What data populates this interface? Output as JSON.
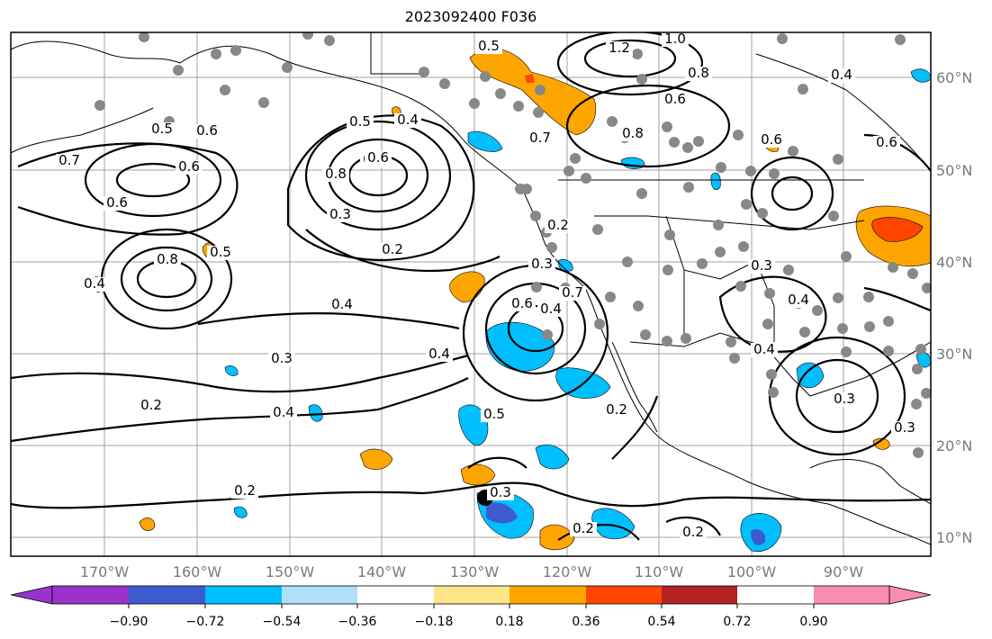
{
  "title": "2023092400 F036",
  "map": {
    "lon_labels": [
      "170°W",
      "160°W",
      "150°W",
      "140°W",
      "130°W",
      "120°W",
      "110°W",
      "100°W",
      "90°W"
    ],
    "lat_labels": [
      "60°N",
      "50°N",
      "40°N",
      "30°N",
      "20°N",
      "10°N"
    ],
    "station_marker_color": "#888888",
    "storm_marker_color": "#000000",
    "contour_labels": [
      "0.5",
      "1.2",
      "1.0",
      "0.8",
      "0.6",
      "0.4",
      "0.5",
      "0.7",
      "0.8",
      "0.4",
      "0.8",
      "0.6",
      "0.3",
      "0.2",
      "0.7",
      "0.6",
      "0.8",
      "0.4",
      "0.4",
      "0.3",
      "0.2",
      "0.5",
      "0.4",
      "0.3",
      "0.6",
      "0.4",
      "0.4",
      "0.3",
      "0.2",
      "0.2",
      "0.2",
      "0.2",
      "0.3",
      "0.7",
      "0.6",
      "0.8",
      "0.6",
      "0.5",
      "0.5",
      "0.4",
      "0.4",
      "0.3",
      "0.3",
      "0.2",
      "0.6",
      "0.6"
    ]
  },
  "colorbar": {
    "tick_labels": [
      "−0.90",
      "−0.72",
      "−0.54",
      "−0.36",
      "−0.18",
      "0.18",
      "0.36",
      "0.54",
      "0.72",
      "0.90"
    ],
    "colors": [
      "#9933cc",
      "#00008b",
      "#3b5bcf",
      "#00bfff",
      "#b0e0f8",
      "#ffffff",
      "#fde68a",
      "#ffa500",
      "#ff4500",
      "#b22222",
      "#f98cb0"
    ]
  }
}
